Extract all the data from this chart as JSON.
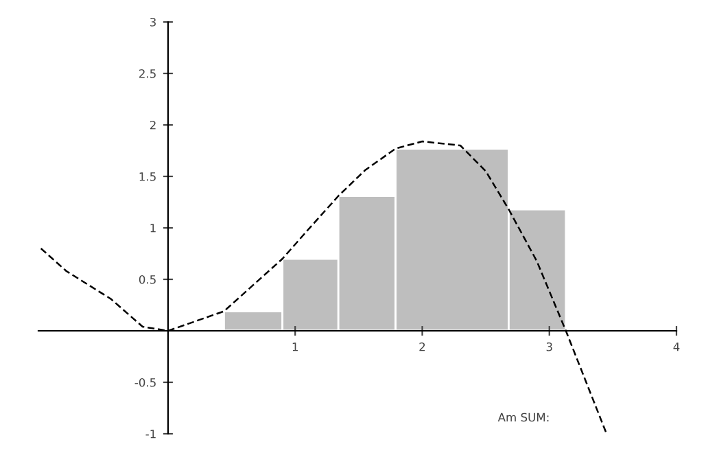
{
  "chart_data": {
    "type": "histogram",
    "bins": [
      0.44,
      0.9,
      1.34,
      1.79,
      2.68,
      3.13
    ],
    "values": [
      0.19,
      0.7,
      1.31,
      1.77,
      1.18
    ],
    "color": "#bebebe",
    "series": [
      {
        "type": "line",
        "color": "#000000",
        "line_style": "dashed",
        "x": [
          -1.0,
          -0.8,
          -0.45,
          -0.2,
          0,
          0.44,
          0.9,
          1.1,
          1.34,
          1.55,
          1.79,
          2.0,
          2.3,
          2.5,
          2.68,
          2.9,
          3.13,
          3.45
        ],
        "values": [
          0.8,
          0.58,
          0.31,
          0.04,
          0,
          0.19,
          0.7,
          0.98,
          1.31,
          1.56,
          1.77,
          1.84,
          1.8,
          1.55,
          1.18,
          0.68,
          0,
          -1.0
        ]
      }
    ],
    "xlim": [
      -1.02,
      4
    ],
    "ylim": [
      -1,
      3
    ],
    "xticks": [
      1,
      2,
      3,
      4
    ],
    "yticks": [
      -1,
      -0.5,
      0.5,
      1,
      1.5,
      2,
      2.5,
      3
    ],
    "grid": false,
    "annotations": [
      "Am SUM:"
    ]
  }
}
